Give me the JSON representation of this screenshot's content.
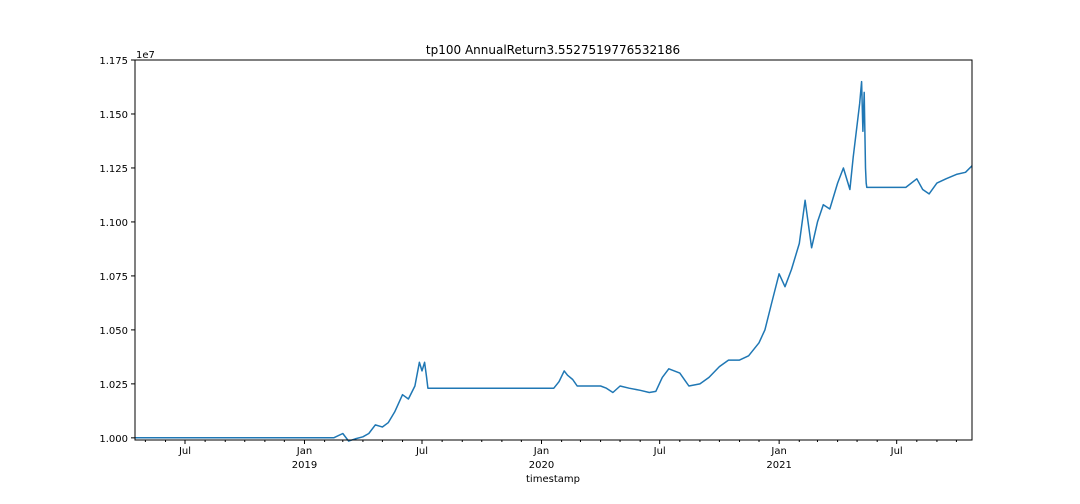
{
  "chart_data": {
    "type": "line",
    "title": "tp100 AnnualReturn3.5527519776532186",
    "xlabel": "timestamp",
    "ylabel": "",
    "y_offset_text": "1e7",
    "ylim": [
      9990000,
      11750000
    ],
    "xlim": [
      "2018-04-15",
      "2021-10-25"
    ],
    "grid": false,
    "line_color": "#1f77b4",
    "y_ticks": [
      {
        "value": 10000000,
        "label": "1.000"
      },
      {
        "value": 10250000,
        "label": "1.025"
      },
      {
        "value": 10500000,
        "label": "1.050"
      },
      {
        "value": 10750000,
        "label": "1.075"
      },
      {
        "value": 11000000,
        "label": "1.100"
      },
      {
        "value": 11250000,
        "label": "1.125"
      },
      {
        "value": 11500000,
        "label": "1.150"
      },
      {
        "value": 11750000,
        "label": "1.175"
      }
    ],
    "x_ticks": [
      {
        "date": "2018-07-01",
        "label": "Jul",
        "sublabel": ""
      },
      {
        "date": "2019-01-01",
        "label": "Jan",
        "sublabel": "2019"
      },
      {
        "date": "2019-07-01",
        "label": "Jul",
        "sublabel": ""
      },
      {
        "date": "2020-01-01",
        "label": "Jan",
        "sublabel": "2020"
      },
      {
        "date": "2020-07-01",
        "label": "Jul",
        "sublabel": ""
      },
      {
        "date": "2021-01-01",
        "label": "Jan",
        "sublabel": "2021"
      },
      {
        "date": "2021-07-01",
        "label": "Jul",
        "sublabel": ""
      }
    ],
    "minor_ticks": [
      "2018-05-01",
      "2018-06-01",
      "2018-08-01",
      "2018-09-01",
      "2018-10-01",
      "2018-11-01",
      "2018-12-01",
      "2019-02-01",
      "2019-03-01",
      "2019-04-01",
      "2019-05-01",
      "2019-06-01",
      "2019-08-01",
      "2019-09-01",
      "2019-10-01",
      "2019-11-01",
      "2019-12-01",
      "2020-02-01",
      "2020-03-01",
      "2020-04-01",
      "2020-05-01",
      "2020-06-01",
      "2020-08-01",
      "2020-09-01",
      "2020-10-01",
      "2020-11-01",
      "2020-12-01",
      "2021-02-01",
      "2021-03-01",
      "2021-04-01",
      "2021-05-01",
      "2021-06-01",
      "2021-08-01",
      "2021-09-01",
      "2021-10-01"
    ],
    "x": [
      "2018-04-15",
      "2018-07-01",
      "2018-10-01",
      "2019-01-01",
      "2019-02-15",
      "2019-03-01",
      "2019-03-10",
      "2019-03-20",
      "2019-04-01",
      "2019-04-10",
      "2019-04-20",
      "2019-05-01",
      "2019-05-10",
      "2019-05-20",
      "2019-06-01",
      "2019-06-10",
      "2019-06-20",
      "2019-06-27",
      "2019-07-01",
      "2019-07-05",
      "2019-07-08",
      "2019-07-10",
      "2020-01-01",
      "2020-01-10",
      "2020-01-20",
      "2020-01-28",
      "2020-02-05",
      "2020-02-10",
      "2020-02-18",
      "2020-02-25",
      "2020-03-15",
      "2020-04-01",
      "2020-04-10",
      "2020-04-20",
      "2020-05-01",
      "2020-05-15",
      "2020-06-01",
      "2020-06-15",
      "2020-06-25",
      "2020-07-05",
      "2020-07-15",
      "2020-08-01",
      "2020-08-15",
      "2020-09-01",
      "2020-09-15",
      "2020-10-01",
      "2020-10-15",
      "2020-11-01",
      "2020-11-15",
      "2020-12-01",
      "2020-12-10",
      "2020-12-20",
      "2021-01-01",
      "2021-01-10",
      "2021-01-20",
      "2021-02-01",
      "2021-02-10",
      "2021-02-20",
      "2021-03-01",
      "2021-03-10",
      "2021-03-20",
      "2021-04-01",
      "2021-04-10",
      "2021-04-20",
      "2021-04-25",
      "2021-05-01",
      "2021-05-05",
      "2021-05-08",
      "2021-05-10",
      "2021-05-12",
      "2021-05-14",
      "2021-05-15",
      "2021-05-16",
      "2021-06-01",
      "2021-07-01",
      "2021-07-15",
      "2021-08-01",
      "2021-08-10",
      "2021-08-20",
      "2021-09-01",
      "2021-09-15",
      "2021-10-01",
      "2021-10-15",
      "2021-10-25"
    ],
    "series": [
      {
        "values": [
          10000000,
          10000000,
          10000000,
          10000000,
          10000000,
          10020000,
          9985000,
          9995000,
          10005000,
          10020000,
          10060000,
          10050000,
          10070000,
          10120000,
          10200000,
          10180000,
          10240000,
          10350000,
          10310000,
          10350000,
          10280000,
          10230000,
          10230000,
          10230000,
          10230000,
          10260000,
          10310000,
          10290000,
          10270000,
          10240000,
          10240000,
          10240000,
          10230000,
          10210000,
          10240000,
          10230000,
          10220000,
          10210000,
          10215000,
          10280000,
          10320000,
          10300000,
          10240000,
          10250000,
          10280000,
          10330000,
          10360000,
          10360000,
          10380000,
          10440000,
          10500000,
          10620000,
          10760000,
          10700000,
          10780000,
          10900000,
          11100000,
          10880000,
          11000000,
          11080000,
          11060000,
          11180000,
          11250000,
          11150000,
          11300000,
          11450000,
          11550000,
          11650000,
          11420000,
          11600000,
          11250000,
          11180000,
          11160000,
          11160000,
          11160000,
          11160000,
          11200000,
          11150000,
          11130000,
          11180000,
          11200000,
          11220000,
          11230000,
          11260000
        ]
      }
    ]
  }
}
